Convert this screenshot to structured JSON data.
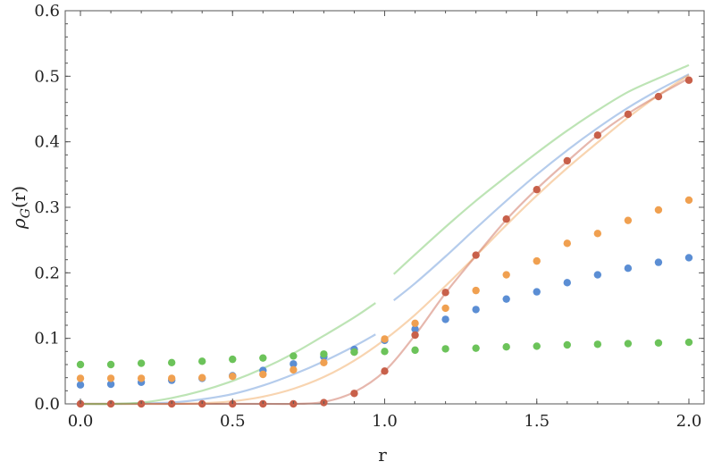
{
  "chart_data": {
    "type": "scatter",
    "xlabel": "r",
    "ylabel": "ρ_G(r)",
    "ylabel_main": "ρ",
    "ylabel_sub": "G",
    "ylabel_rest": "(r)",
    "xlim": [
      -0.05,
      2.05
    ],
    "ylim": [
      0,
      0.6
    ],
    "xticks": [
      "0.0",
      "0.5",
      "1.0",
      "1.5",
      "2.0"
    ],
    "xtick_values": [
      0,
      0.5,
      1.0,
      1.5,
      2.0
    ],
    "yticks": [
      "0.0",
      "0.1",
      "0.2",
      "0.3",
      "0.4",
      "0.5",
      "0.6"
    ],
    "ytick_values": [
      0,
      0.1,
      0.2,
      0.3,
      0.4,
      0.5,
      0.6
    ],
    "grid": false,
    "x": [
      0.0,
      0.1,
      0.2,
      0.3,
      0.4,
      0.5,
      0.6,
      0.7,
      0.8,
      0.9,
      1.0,
      1.1,
      1.2,
      1.3,
      1.4,
      1.5,
      1.6,
      1.7,
      1.8,
      1.9,
      2.0
    ],
    "series": [
      {
        "color": "#5b8ed4",
        "points": [
          0.029,
          0.03,
          0.033,
          0.036,
          0.039,
          0.043,
          0.051,
          0.061,
          0.072,
          0.083,
          0.097,
          0.114,
          0.129,
          0.144,
          0.16,
          0.171,
          0.185,
          0.197,
          0.207,
          0.216,
          0.223
        ],
        "curve_x": [
          0.0,
          0.1,
          0.2,
          0.3,
          0.4,
          0.5,
          0.6,
          0.7,
          0.8,
          0.9,
          0.97
        ],
        "curve": [
          0.0,
          0.0,
          0.0005,
          0.002,
          0.007,
          0.015,
          0.028,
          0.045,
          0.065,
          0.088,
          0.106
        ],
        "curve2_x": [
          1.03,
          1.1,
          1.2,
          1.3,
          1.4,
          1.5,
          1.6,
          1.7,
          1.8,
          1.9,
          2.0
        ],
        "curve2": [
          0.158,
          0.184,
          0.225,
          0.268,
          0.31,
          0.35,
          0.387,
          0.421,
          0.452,
          0.479,
          0.503
        ]
      },
      {
        "color": "#f0a050",
        "points": [
          0.039,
          0.039,
          0.039,
          0.039,
          0.04,
          0.042,
          0.045,
          0.052,
          0.063,
          0.079,
          0.099,
          0.123,
          0.146,
          0.173,
          0.197,
          0.218,
          0.245,
          0.26,
          0.28,
          0.296,
          0.311
        ],
        "curve_x": [
          0.0,
          0.1,
          0.2,
          0.3,
          0.4,
          0.5,
          0.6,
          0.7,
          0.8,
          0.9,
          1.0,
          1.1,
          1.2,
          1.3,
          1.4,
          1.5,
          1.6,
          1.7,
          1.8,
          1.9,
          2.0
        ],
        "curve": [
          0.0,
          0.0,
          0.0,
          0.0,
          0.001,
          0.004,
          0.011,
          0.023,
          0.041,
          0.066,
          0.098,
          0.136,
          0.18,
          0.226,
          0.273,
          0.318,
          0.36,
          0.399,
          0.437,
          0.471,
          0.502
        ]
      },
      {
        "color": "#c8604a",
        "points": [
          0.0,
          0.0,
          0.0,
          0.0,
          0.0,
          0.0,
          0.0,
          0.0,
          0.002,
          0.016,
          0.05,
          0.105,
          0.17,
          0.227,
          0.282,
          0.327,
          0.371,
          0.41,
          0.442,
          0.469,
          0.494
        ],
        "curve_x": [
          0.0,
          0.1,
          0.2,
          0.3,
          0.4,
          0.5,
          0.6,
          0.7,
          0.8,
          0.9,
          1.0,
          1.1,
          1.2,
          1.3,
          1.4,
          1.5,
          1.6,
          1.7,
          1.8,
          1.9,
          2.0
        ],
        "curve": [
          0.0,
          0.0,
          0.0,
          0.0,
          0.0,
          0.0,
          0.0,
          0.0,
          0.003,
          0.018,
          0.05,
          0.105,
          0.169,
          0.226,
          0.281,
          0.328,
          0.37,
          0.41,
          0.443,
          0.471,
          0.497
        ]
      },
      {
        "color": "#6cc35a",
        "points": [
          0.06,
          0.06,
          0.062,
          0.063,
          0.065,
          0.068,
          0.07,
          0.073,
          0.076,
          0.079,
          0.08,
          0.082,
          0.084,
          0.085,
          0.087,
          0.088,
          0.09,
          0.091,
          0.092,
          0.093,
          0.094
        ],
        "curve_x": [
          0.0,
          0.1,
          0.2,
          0.3,
          0.4,
          0.5,
          0.6,
          0.7,
          0.8,
          0.9,
          0.97
        ],
        "curve": [
          0.0,
          0.0,
          0.002,
          0.009,
          0.02,
          0.035,
          0.054,
          0.077,
          0.104,
          0.132,
          0.154
        ],
        "curve2_x": [
          1.03,
          1.1,
          1.2,
          1.3,
          1.4,
          1.5,
          1.6,
          1.7,
          1.8,
          1.9,
          2.0
        ],
        "curve2": [
          0.198,
          0.228,
          0.27,
          0.31,
          0.347,
          0.383,
          0.417,
          0.448,
          0.476,
          0.497,
          0.517
        ]
      }
    ],
    "line_alpha": 0.45
  }
}
